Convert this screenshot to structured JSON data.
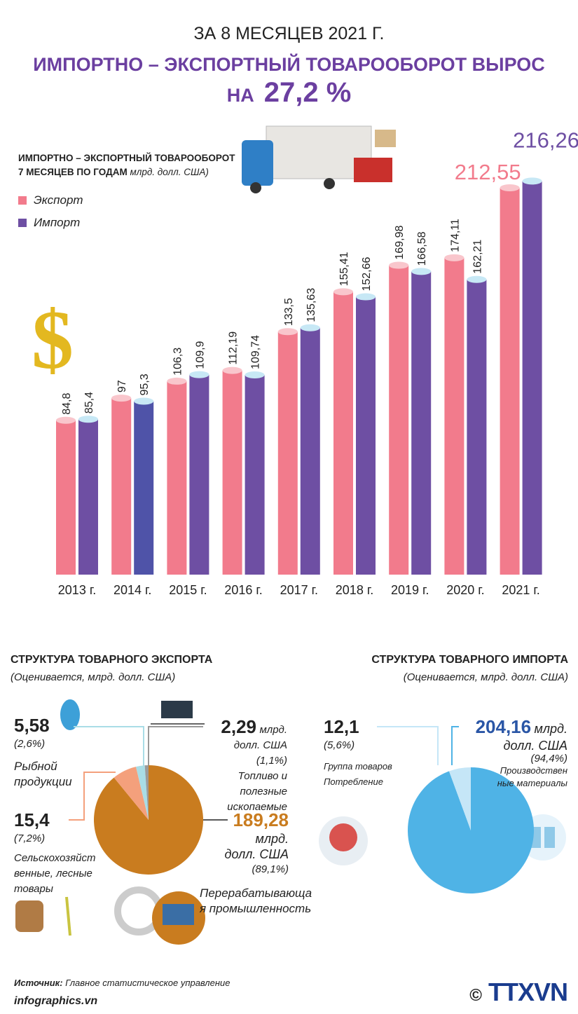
{
  "header": {
    "super_title": "ЗА 8 МЕСЯЦЕВ 2021 Г.",
    "headline": "ИМПОРТНО – ЭКСПОРТНЫЙ ТОВАРООБОРОТ ВЫРОС НА",
    "headline_value": "27,2 %"
  },
  "colors": {
    "export": "#f27b8c",
    "import": "#6e4fa3",
    "import_2014": "#4f53a8",
    "headline": "#6b3fa0"
  },
  "chart_data": {
    "type": "bar",
    "title_line1": "ИМПОРТНО – ЭКСПОРТНЫЙ ТОВАРООБОРОТ",
    "title_line2": "7 МЕСЯЦЕВ ПО ГОДАМ",
    "unit": "млрд. долл. США)",
    "legend_placement": "top-left",
    "categories": [
      "2013 г.",
      "2014 г.",
      "2015 г.",
      "2016 г.",
      "2017 г.",
      "2018 г.",
      "2019 г.",
      "2020 г.",
      "2021 г."
    ],
    "series": [
      {
        "name": "Экспорт",
        "values": [
          84.8,
          97,
          106.3,
          112.19,
          133.5,
          155.41,
          169.98,
          174.11,
          212.55
        ],
        "labels": [
          "84,8",
          "97",
          "106,3",
          "112,19",
          "133,5",
          "155,41",
          "169,98",
          "174,11",
          "212,55"
        ]
      },
      {
        "name": "Импорт",
        "values": [
          85.4,
          95.3,
          109.9,
          109.74,
          135.63,
          152.66,
          166.58,
          162.21,
          216.26
        ],
        "labels": [
          "85,4",
          "95,3",
          "109,9",
          "109,74",
          "135,63",
          "152,66",
          "166,58",
          "162,21",
          "216,26"
        ]
      }
    ],
    "ylim": [
      0,
      220
    ],
    "grid": false
  },
  "export_structure": {
    "title": "СТРУКТУРА ТОВАРНОГО ЭКСПОРТА",
    "subtitle": "(Оценивается, млрд. долл. США)",
    "slices": [
      {
        "value": "189,28",
        "unit": "млрд.",
        "unit2": "долл. США",
        "pct": "(89,1%)",
        "label": "Перерабатывающа",
        "label2": "я промышленность",
        "percent": 89.1,
        "color": "#c97c1f"
      },
      {
        "value": "15,4",
        "pct": "(7,2%)",
        "label": "Сельскохозяйст",
        "label2": "венные, лесные",
        "label3": "товары",
        "percent": 7.2,
        "color": "#f4a07c"
      },
      {
        "value": "5,58",
        "pct": "(2,6%)",
        "label": "Рыбной",
        "label2": "продукции",
        "percent": 2.6,
        "color": "#a9dde6"
      },
      {
        "value": "2,29",
        "unit": "млрд.",
        "unit2": "долл. США",
        "pct": "(1,1%)",
        "label": "Топливо и",
        "label2": "полезные",
        "label3": "ископаемые",
        "percent": 1.1,
        "color": "#9a9a9a"
      }
    ]
  },
  "import_structure": {
    "title": "СТРУКТУРА ТОВАРНОГО ИМПОРТА",
    "subtitle": "(Оценивается, млрд. долл. США)",
    "slices": [
      {
        "value": "204,16",
        "unit": "млрд.",
        "unit2": "долл. США",
        "pct": "(94,4%)",
        "label": "Производствен",
        "label2": "ные материалы",
        "percent": 94.4,
        "color": "#4fb3e6"
      },
      {
        "value": "12,1",
        "pct": "(5,6%)",
        "label": "Группа товаров",
        "label2": "Потребление",
        "percent": 5.6,
        "color": "#c5e6f7"
      }
    ]
  },
  "footer": {
    "source_label": "Источник:",
    "source": "Главное статистическое управление",
    "site": "infographics.vn",
    "copyright": "©",
    "logo": "TTXVN"
  }
}
